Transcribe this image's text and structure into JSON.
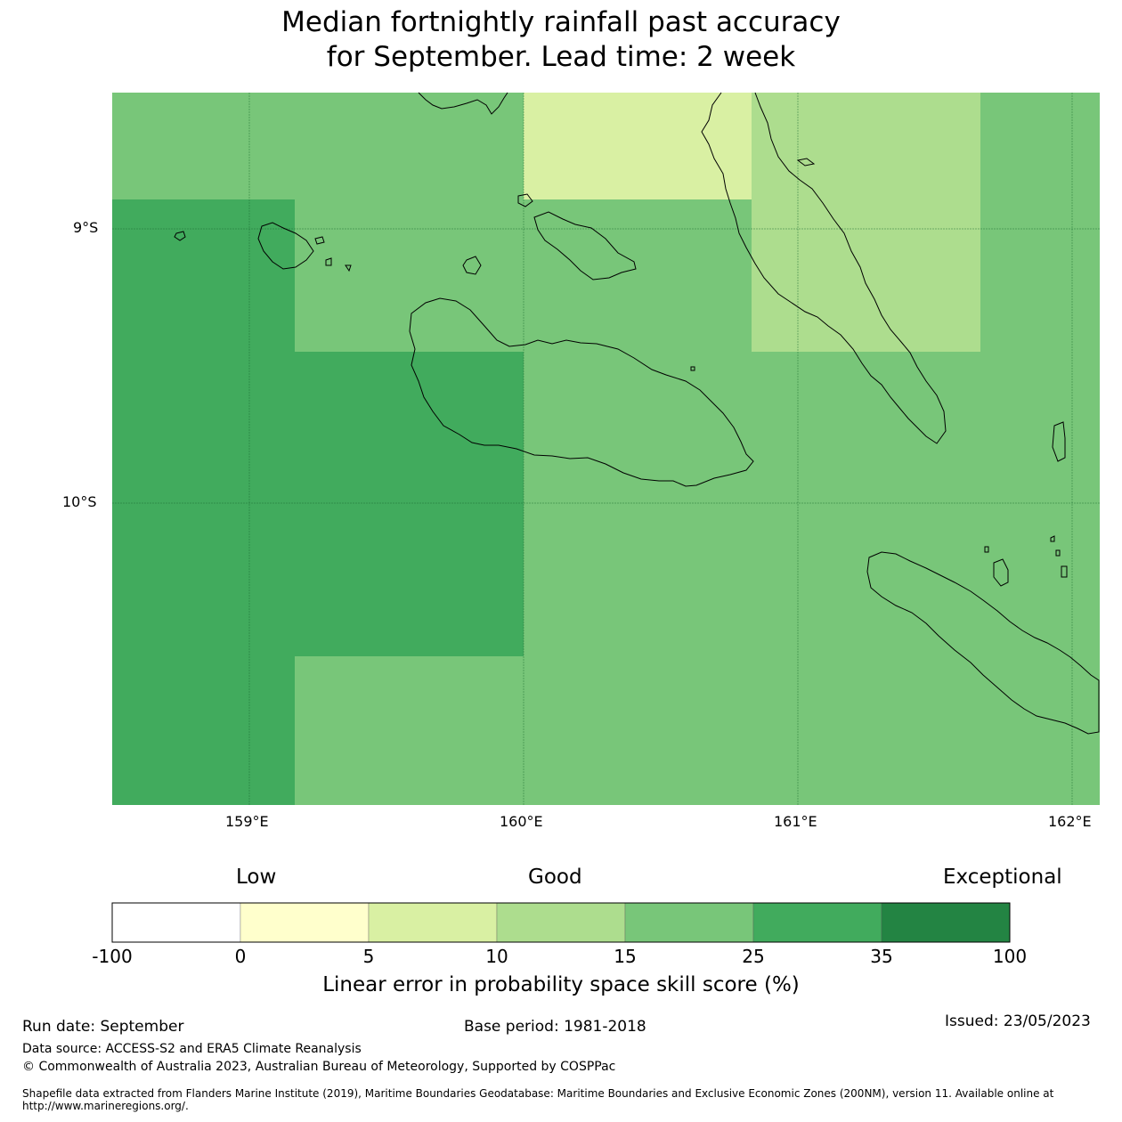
{
  "title": {
    "line1": "Median fortnightly rainfall past accuracy",
    "line2": "for September. Lead time: 2 week"
  },
  "map": {
    "lat_labels": [
      "9°S",
      "10°S"
    ],
    "lon_labels": [
      "159°E",
      "160°E",
      "161°E",
      "162°E"
    ],
    "colors": {
      "c5_10": "#d9f0a3",
      "c10_15": "#addd8e",
      "c15_25": "#78c679",
      "c25_35": "#41ab5d",
      "c35_100": "#238443"
    }
  },
  "colorbar": {
    "headings": [
      "Low",
      "Good",
      "Exceptional"
    ],
    "ticks": [
      "-100",
      "0",
      "5",
      "10",
      "15",
      "25",
      "35",
      "100"
    ],
    "colors": [
      "#ffffff",
      "#ffffcc",
      "#d9f0a3",
      "#addd8e",
      "#78c679",
      "#41ab5d",
      "#238443"
    ],
    "label": "Linear error in probability space skill score (%)"
  },
  "footer": {
    "run_date": "Run date: September",
    "base_period": "Base period: 1981-2018",
    "issued": "Issued: 23/05/2023",
    "data_source": "Data source: ACCESS-S2 and ERA5 Climate Reanalysis",
    "copyright": "© Commonwealth of Australia 2023, Australian Bureau of Meteorology, Supported by COSPPac",
    "shapefile": "Shapefile data extracted from Flanders Marine Institute (2019), Maritime Boundaries Geodatabase: Maritime Boundaries and Exclusive Economic Zones (200NM), version 11. Available online at http://www.marineregions.org/."
  }
}
